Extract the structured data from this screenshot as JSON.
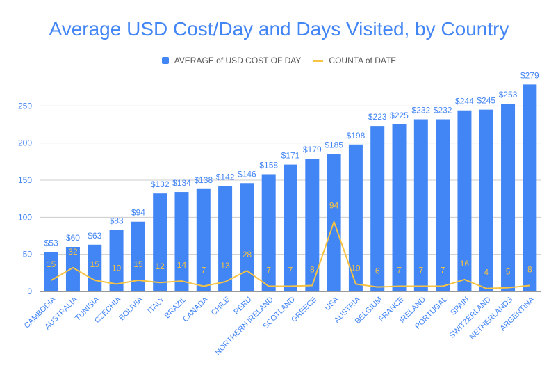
{
  "chart_data": {
    "type": "bar",
    "title": "Average USD Cost/Day and Days Visited, by Country",
    "categories": [
      "CAMBODIA",
      "AUSTRALIA",
      "TUNISIA",
      "CZECHIA",
      "BOLIVIA",
      "ITALY",
      "BRAZIL",
      "CANADA",
      "CHILE",
      "PERU",
      "NORTHERN IRELAND",
      "SCOTLAND",
      "GREECE",
      "USA",
      "AUSTRIA",
      "BELGIUM",
      "FRANCE",
      "IRELAND",
      "PORTUGAL",
      "SPAIN",
      "SWITZERLAND",
      "NETHERLANDS",
      "ARGENTINA"
    ],
    "series": [
      {
        "name": "AVERAGE of USD COST OF DAY",
        "type": "bar",
        "color": "#4285f4",
        "values": [
          53,
          60,
          63,
          83,
          94,
          132,
          134,
          138,
          142,
          146,
          158,
          171,
          179,
          185,
          198,
          223,
          225,
          232,
          232,
          244,
          245,
          253,
          279
        ],
        "labels": [
          "$53",
          "$60",
          "$63",
          "$83",
          "$94",
          "$132",
          "$134",
          "$138",
          "$142",
          "$146",
          "$158",
          "$171",
          "$179",
          "$185",
          "$198",
          "$223",
          "$225",
          "$232",
          "$232",
          "$244",
          "$245",
          "$253",
          "$279"
        ]
      },
      {
        "name": "COUNTA of DATE",
        "type": "line",
        "color": "#f6c344",
        "values": [
          15,
          32,
          15,
          10,
          15,
          12,
          14,
          7,
          13,
          28,
          7,
          7,
          8,
          94,
          10,
          6,
          7,
          7,
          7,
          16,
          4,
          5,
          8
        ]
      }
    ],
    "yticks": [
      0,
      50,
      100,
      150,
      200,
      250
    ],
    "ylim": [
      0,
      280
    ],
    "grid": true,
    "legend_position": "top"
  }
}
